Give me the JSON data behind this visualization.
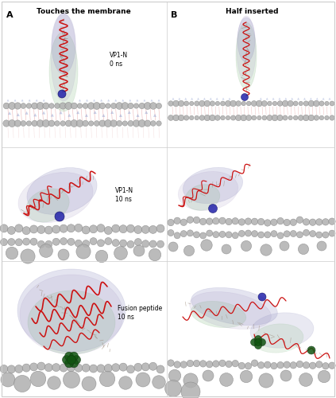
{
  "title_A": "Touches the membrane",
  "title_B": "Half inserted",
  "label_A": "A",
  "label_B": "B",
  "label_vp1n_0ns": "VP1-N\n0 ns",
  "label_vp1n_10ns": "VP1-N\n10 ns",
  "label_fp_10ns": "Fusion peptide\n10 ns",
  "bg_color": "#ffffff",
  "helix_color": "#cc1111",
  "vdw_blue": "#8888bb",
  "vdw_green": "#88bb88",
  "vdw_purple": "#9988bb",
  "blue_sphere_color": "#2222aa",
  "green_sphere_color": "#115511",
  "grey_sphere_color": "#b0b0b0",
  "grey_sphere_edge": "#888888",
  "lipid_color": "#cc3333",
  "water_color": "#8899cc",
  "title_fontsize": 6.5,
  "label_fontsize": 8,
  "annot_fontsize": 5.5,
  "border_color": "#cccccc"
}
